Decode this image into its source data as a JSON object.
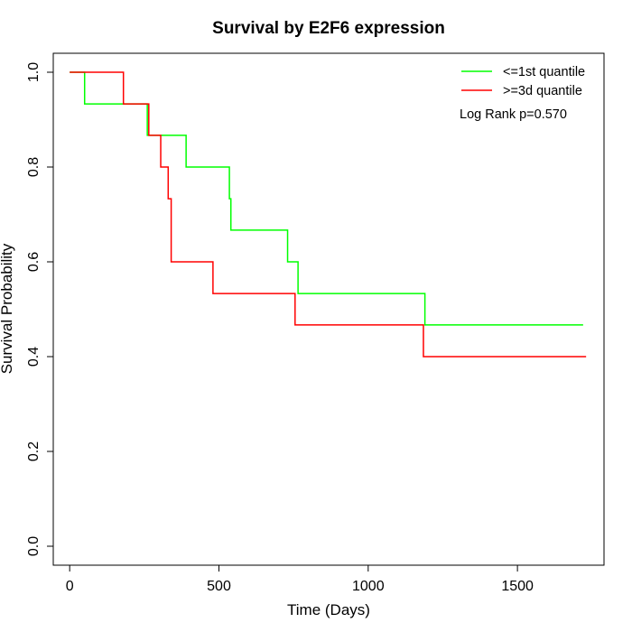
{
  "chart_data": {
    "type": "line",
    "title": "Survival by E2F6 expression",
    "xlabel": "Time (Days)",
    "ylabel": "Survival Probability",
    "xlim": [
      -55,
      1790
    ],
    "ylim": [
      -0.04,
      1.04
    ],
    "xticks": [
      0,
      500,
      1000,
      1500
    ],
    "yticks": [
      0.0,
      0.2,
      0.4,
      0.6,
      0.8,
      1.0
    ],
    "xtick_labels": [
      "0",
      "500",
      "1000",
      "1500"
    ],
    "ytick_labels": [
      "0.0",
      "0.2",
      "0.4",
      "0.6",
      "0.8",
      "1.0"
    ],
    "grid": false,
    "legend_position": "top-right",
    "annotation": "Log Rank p=0.570",
    "series": [
      {
        "name": "<=1st quantile",
        "color": "#00ff00",
        "step": true,
        "x": [
          0,
          50,
          260,
          390,
          535,
          540,
          730,
          765,
          1190,
          1720
        ],
        "y": [
          1.0,
          0.933,
          0.867,
          0.8,
          0.733,
          0.667,
          0.6,
          0.533,
          0.467,
          0.467
        ]
      },
      {
        "name": ">=3d quantile",
        "color": "#ff0000",
        "step": true,
        "x": [
          0,
          180,
          265,
          305,
          330,
          340,
          480,
          755,
          1185,
          1730
        ],
        "y": [
          1.0,
          0.933,
          0.867,
          0.8,
          0.733,
          0.6,
          0.533,
          0.467,
          0.4,
          0.4
        ]
      }
    ]
  }
}
